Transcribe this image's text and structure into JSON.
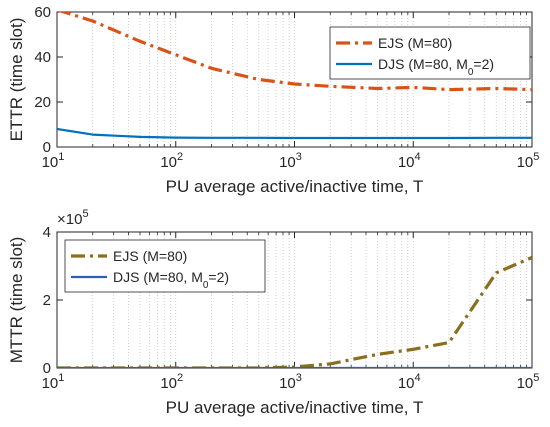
{
  "chart_data": [
    {
      "type": "line",
      "xscale": "log",
      "xlim": [
        10,
        100000
      ],
      "ylim": [
        0,
        60
      ],
      "xlabel": "PU average active/inactive time, T",
      "ylabel": "ETTR (time slot)",
      "xticks": [
        10,
        100,
        1000,
        10000,
        100000
      ],
      "yticks": [
        0,
        20,
        40,
        60
      ],
      "ytick_labels": [
        "0",
        "20",
        "40",
        "60"
      ],
      "grid": "x-minor",
      "legend": "top-right",
      "series": [
        {
          "name": "EJS (M=80)",
          "legend_html": "EJS (M=80)",
          "color": "#D95319",
          "dash": "dashdot",
          "x": [
            10,
            20,
            50,
            100,
            200,
            500,
            1000,
            2000,
            5000,
            10000,
            20000,
            50000,
            100000
          ],
          "y": [
            61,
            56,
            47,
            41,
            35,
            30,
            28,
            27,
            26,
            26.5,
            25.5,
            26,
            25.5
          ]
        },
        {
          "name": "DJS (M=80, M0=2)",
          "legend_html": "DJS (M=80, M<tspan baseline-shift=\"sub\" font-size=\"10\">0</tspan>=2)",
          "color": "#0072BD",
          "dash": "solid",
          "x": [
            10,
            20,
            50,
            100,
            200,
            500,
            1000,
            2000,
            5000,
            10000,
            20000,
            50000,
            100000
          ],
          "y": [
            8,
            5.5,
            4.5,
            4.2,
            4.1,
            4.1,
            4.0,
            4.0,
            4.0,
            4.0,
            4.0,
            4.1,
            4.1
          ]
        }
      ]
    },
    {
      "type": "line",
      "xscale": "log",
      "xlim": [
        10,
        100000
      ],
      "ylim": [
        0,
        400000
      ],
      "xlabel": "PU average active/inactive time, T",
      "ylabel": "MTTR (time slot)",
      "xticks": [
        10,
        100,
        1000,
        10000,
        100000
      ],
      "yticks": [
        0,
        200000,
        400000
      ],
      "ytick_labels": [
        "0",
        "2",
        "4"
      ],
      "y_exponent": "×10^5",
      "grid": "x-minor",
      "legend": "top-left",
      "series": [
        {
          "name": "EJS (M=80)",
          "legend_html": "EJS (M=80)",
          "color": "#8C6D1F",
          "dash": "dashdot",
          "x": [
            10,
            20,
            50,
            100,
            200,
            500,
            1000,
            2000,
            5000,
            10000,
            20000,
            50000,
            100000
          ],
          "y": [
            0,
            0,
            0,
            0,
            0,
            0,
            3000,
            12000,
            40000,
            55000,
            75000,
            280000,
            325000
          ]
        },
        {
          "name": "DJS (M=80, M0=2)",
          "legend_html": "DJS (M=80, M<tspan baseline-shift=\"sub\" font-size=\"10\">0</tspan>=2)",
          "color": "#2E5FB5",
          "dash": "solid",
          "x": [
            10,
            20,
            50,
            100,
            200,
            500,
            1000,
            2000,
            5000,
            10000,
            20000,
            50000,
            100000
          ],
          "y": [
            0,
            0,
            0,
            0,
            0,
            0,
            0,
            0,
            0,
            0,
            0,
            0,
            0
          ]
        }
      ]
    }
  ]
}
